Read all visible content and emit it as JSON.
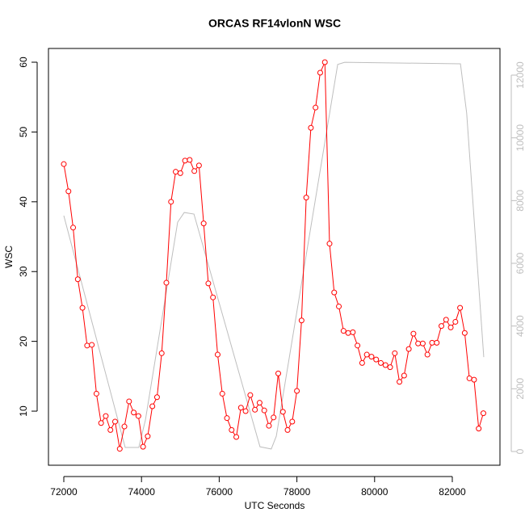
{
  "chart_data": {
    "type": "line",
    "title": "ORCAS RF14vlonN WSC",
    "xlabel": "UTC Seconds",
    "ylabel": "WSC",
    "xlim": [
      71605,
      83227
    ],
    "xticks": [
      72000,
      74000,
      76000,
      78000,
      80000,
      82000
    ],
    "ylim": [
      2.25,
      61.97
    ],
    "yticks": [
      10,
      20,
      30,
      40,
      50,
      60
    ],
    "y2lim": [
      -438,
      12850
    ],
    "y2ticks": [
      0,
      2000,
      4000,
      6000,
      8000,
      10000,
      12000
    ],
    "series": [
      {
        "color": "#ff0000",
        "markers": true,
        "x": [
          72000,
          72120,
          72240,
          72360,
          72480,
          72600,
          72720,
          72840,
          72960,
          73080,
          73200,
          73320,
          73440,
          73560,
          73680,
          73800,
          73920,
          74040,
          74160,
          74280,
          74400,
          74520,
          74640,
          74760,
          74880,
          75000,
          75120,
          75240,
          75360,
          75480,
          75600,
          75720,
          75840,
          75960,
          76080,
          76200,
          76320,
          76440,
          76560,
          76680,
          76800,
          76920,
          77040,
          77160,
          77280,
          77400,
          77520,
          77640,
          77760,
          77880,
          78000,
          78120,
          78240,
          78360,
          78480,
          78600,
          78720,
          78840,
          78960,
          79080,
          79200,
          79320,
          79440,
          79560,
          79680,
          79800,
          79920,
          80040,
          80160,
          80280,
          80400,
          80520,
          80640,
          80760,
          80880,
          81000,
          81120,
          81240,
          81360,
          81480,
          81600,
          81720,
          81840,
          81960,
          82080,
          82200,
          82320,
          82440,
          82560,
          82680,
          82800
        ],
        "values": [
          45.4,
          41.5,
          36.3,
          28.9,
          24.8,
          19.4,
          19.5,
          12.5,
          8.3,
          9.3,
          7.3,
          8.5,
          4.6,
          7.8,
          11.4,
          9.8,
          9.3,
          4.9,
          6.4,
          10.7,
          12.0,
          18.3,
          28.4,
          40.0,
          44.3,
          44.1,
          45.9,
          46.0,
          44.4,
          45.2,
          36.9,
          28.3,
          26.3,
          18.1,
          12.5,
          9.0,
          7.3,
          6.3,
          10.5,
          10.0,
          12.3,
          10.2,
          11.2,
          10.1,
          7.9,
          9.1,
          15.4,
          9.9,
          7.3,
          8.5,
          12.9,
          23.0,
          40.6,
          50.6,
          53.5,
          58.5,
          60.0,
          34.0,
          27.0,
          25.0,
          21.5,
          21.2,
          21.3,
          19.4,
          16.9,
          18.1,
          17.8,
          17.4,
          16.9,
          16.6,
          16.3,
          18.3,
          14.2,
          15.1,
          18.9,
          21.1,
          19.7,
          19.7,
          18.1,
          19.8,
          19.8,
          22.2,
          23.1,
          22.0,
          22.8,
          24.8,
          21.2,
          14.7,
          14.5,
          7.5,
          9.7
        ]
      },
      {
        "color": "#bebebe",
        "axis": "y2",
        "markers": false,
        "x": [
          72000,
          73580,
          73930,
          74100,
          74930,
          75100,
          75350,
          77050,
          77340,
          77470,
          79050,
          79230,
          82210,
          82370,
          82810
        ],
        "values": [
          7520,
          130,
          130,
          1000,
          7310,
          7620,
          7570,
          150,
          80,
          490,
          12340,
          12410,
          12360,
          10790,
          3010
        ]
      }
    ]
  }
}
